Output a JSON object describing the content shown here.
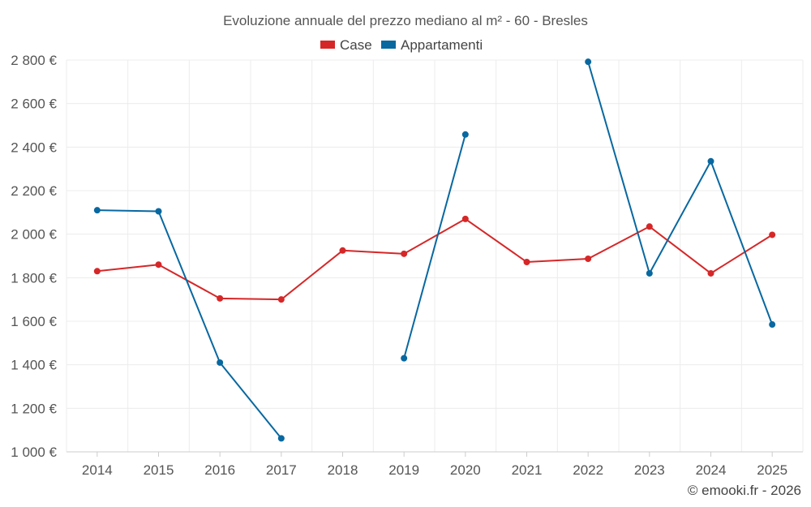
{
  "chart_data": {
    "type": "line",
    "title": "Evoluzione annuale del prezzo mediano al m² - 60 - Bresles",
    "categories": [
      "2014",
      "2015",
      "2016",
      "2017",
      "2018",
      "2019",
      "2020",
      "2021",
      "2022",
      "2023",
      "2024",
      "2025"
    ],
    "series": [
      {
        "name": "Case",
        "color": "#d62728",
        "values": [
          1830,
          1860,
          1705,
          1700,
          1925,
          1910,
          2070,
          1872,
          1887,
          2035,
          1820,
          1997
        ]
      },
      {
        "name": "Appartamenti",
        "color": "#0868a0",
        "values": [
          2110,
          2105,
          1410,
          1062,
          null,
          1430,
          2458,
          null,
          2792,
          1820,
          2335,
          1585
        ]
      }
    ],
    "y_ticks": [
      "1 000 €",
      "1 200 €",
      "1 400 €",
      "1 600 €",
      "1 800 €",
      "2 000 €",
      "2 200 €",
      "2 400 €",
      "2 600 €",
      "2 800 €"
    ],
    "ylim": [
      1000,
      2800
    ],
    "grid": true,
    "legend_position": "top-center",
    "xlabel": "",
    "ylabel": ""
  },
  "credit": "© emooki.fr - 2026"
}
